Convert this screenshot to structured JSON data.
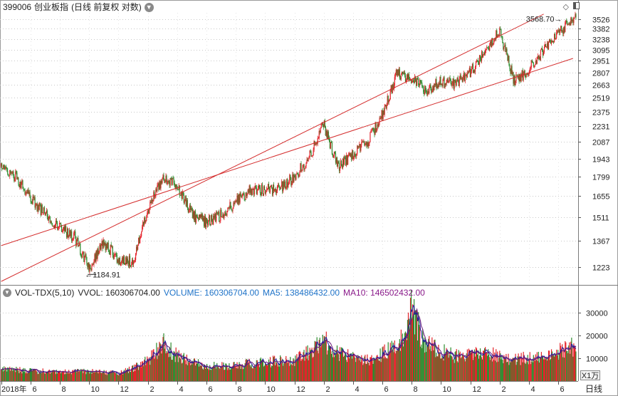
{
  "header": {
    "code": "399006",
    "name": "创业板指",
    "mode": "(日线 前复权 对数)"
  },
  "corner": {
    "options_icon": "diamond-icon",
    "layout_icon": "panel-toggle-icon"
  },
  "volume_panel": {
    "indicator": "VOL-TDX(5,10)",
    "vvol_label": "VVOL:",
    "vvol_value": "160306704.00",
    "volume_label": "VOLUME:",
    "volume_value": "160306704.00",
    "ma5_label": "MA5:",
    "ma5_value": "138486432.00",
    "ma10_label": "MA10:",
    "ma10_value": "146502432.00",
    "unit": "X1万",
    "period": "日线"
  },
  "colors": {
    "up": "#e3242b",
    "down": "#2e8b2e",
    "channel": "#d42d2d",
    "ma5": "#1b1b9c",
    "ma10": "#6a1a7a",
    "grid": "#c8c8c8",
    "axis_text": "#222222"
  },
  "chart_data": [
    {
      "type": "candlestick",
      "title": "",
      "scale": "log",
      "ylim": [
        1140,
        3620
      ],
      "yticks": [
        1223,
        1367,
        1511,
        1655,
        1799,
        1943,
        2087,
        2231,
        2375,
        2519,
        2663,
        2807,
        2951,
        3095,
        3238,
        3382,
        3526
      ],
      "grid": true,
      "x_tick_labels": [
        "2018年",
        "6",
        "8",
        "10",
        "12",
        "2",
        "4",
        "6",
        "8",
        "10",
        "12",
        "2",
        "4",
        "6",
        "8",
        "10",
        "12",
        "2",
        "4",
        "6"
      ],
      "x_axis_dates": [
        "2018-04",
        "2018-06",
        "2018-08",
        "2018-10",
        "2018-12",
        "2019-02",
        "2019-04",
        "2019-06",
        "2019-08",
        "2019-10",
        "2019-12",
        "2020-02",
        "2020-04",
        "2020-06",
        "2020-08",
        "2020-10",
        "2020-12",
        "2021-02",
        "2021-04",
        "2021-06"
      ],
      "trend_path": [
        {
          "date": "2018-04",
          "close": 1880
        },
        {
          "date": "2018-05",
          "close": 1800
        },
        {
          "date": "2018-06",
          "close": 1640
        },
        {
          "date": "2018-07",
          "close": 1530
        },
        {
          "date": "2018-08",
          "close": 1450
        },
        {
          "date": "2018-09",
          "close": 1390
        },
        {
          "date": "2018-10",
          "close": 1220
        },
        {
          "date": "2018-11",
          "close": 1360
        },
        {
          "date": "2018-12",
          "close": 1260
        },
        {
          "date": "2019-01",
          "close": 1250
        },
        {
          "date": "2019-02",
          "close": 1560
        },
        {
          "date": "2019-03",
          "close": 1790
        },
        {
          "date": "2019-04",
          "close": 1730
        },
        {
          "date": "2019-05",
          "close": 1530
        },
        {
          "date": "2019-06",
          "close": 1480
        },
        {
          "date": "2019-07",
          "close": 1530
        },
        {
          "date": "2019-08",
          "close": 1610
        },
        {
          "date": "2019-09",
          "close": 1700
        },
        {
          "date": "2019-10",
          "close": 1700
        },
        {
          "date": "2019-11",
          "close": 1710
        },
        {
          "date": "2019-12",
          "close": 1800
        },
        {
          "date": "2020-01",
          "close": 1950
        },
        {
          "date": "2020-02",
          "close": 2250
        },
        {
          "date": "2020-03",
          "close": 1870
        },
        {
          "date": "2020-04",
          "close": 1980
        },
        {
          "date": "2020-05",
          "close": 2080
        },
        {
          "date": "2020-06",
          "close": 2350
        },
        {
          "date": "2020-07",
          "close": 2800
        },
        {
          "date": "2020-08",
          "close": 2740
        },
        {
          "date": "2020-09",
          "close": 2600
        },
        {
          "date": "2020-10",
          "close": 2700
        },
        {
          "date": "2020-11",
          "close": 2680
        },
        {
          "date": "2020-12",
          "close": 2800
        },
        {
          "date": "2021-01",
          "close": 3100
        },
        {
          "date": "2021-02",
          "close": 3350
        },
        {
          "date": "2021-03",
          "close": 2700
        },
        {
          "date": "2021-04",
          "close": 2850
        },
        {
          "date": "2021-05",
          "close": 3100
        },
        {
          "date": "2021-06",
          "close": 3300
        },
        {
          "date": "2021-07",
          "close": 3550
        }
      ],
      "annotations": [
        {
          "label": "1184.91",
          "date": "2018-10",
          "value": 1184.91,
          "type": "low"
        },
        {
          "label": "3568.70",
          "date": "2021-07",
          "value": 3568.7,
          "type": "high"
        }
      ],
      "channel_lines": [
        {
          "name": "upper",
          "from": {
            "date": "2018-04",
            "value": 1150
          },
          "to": {
            "date": "2021-05",
            "value": 3600
          }
        },
        {
          "name": "lower",
          "from": {
            "date": "2018-04",
            "value": 1340
          },
          "to": {
            "date": "2021-07",
            "value": 2980
          }
        }
      ]
    },
    {
      "type": "bar",
      "title": "",
      "ylim": [
        0,
        36000
      ],
      "yticks": [
        10000,
        20000,
        30000
      ],
      "grid": true,
      "series": [
        {
          "name": "VOLUME",
          "values_note_units": "X1万"
        },
        {
          "name": "MA5"
        },
        {
          "name": "MA10"
        }
      ],
      "volume_profile": [
        {
          "date": "2018-04",
          "value": 5500
        },
        {
          "date": "2018-06",
          "value": 4500
        },
        {
          "date": "2018-08",
          "value": 4000
        },
        {
          "date": "2018-10",
          "value": 4200
        },
        {
          "date": "2018-12",
          "value": 3500
        },
        {
          "date": "2019-02",
          "value": 9000
        },
        {
          "date": "2019-03",
          "value": 17000
        },
        {
          "date": "2019-04",
          "value": 11000
        },
        {
          "date": "2019-06",
          "value": 6500
        },
        {
          "date": "2019-08",
          "value": 7000
        },
        {
          "date": "2019-10",
          "value": 8500
        },
        {
          "date": "2019-12",
          "value": 9000
        },
        {
          "date": "2020-02",
          "value": 18000
        },
        {
          "date": "2020-03",
          "value": 12000
        },
        {
          "date": "2020-05",
          "value": 9000
        },
        {
          "date": "2020-07",
          "value": 16000
        },
        {
          "date": "2020-08",
          "value": 32000
        },
        {
          "date": "2020-09",
          "value": 16000
        },
        {
          "date": "2020-11",
          "value": 11000
        },
        {
          "date": "2021-01",
          "value": 13000
        },
        {
          "date": "2021-03",
          "value": 9500
        },
        {
          "date": "2021-05",
          "value": 11000
        },
        {
          "date": "2021-07",
          "value": 15000
        }
      ]
    }
  ]
}
